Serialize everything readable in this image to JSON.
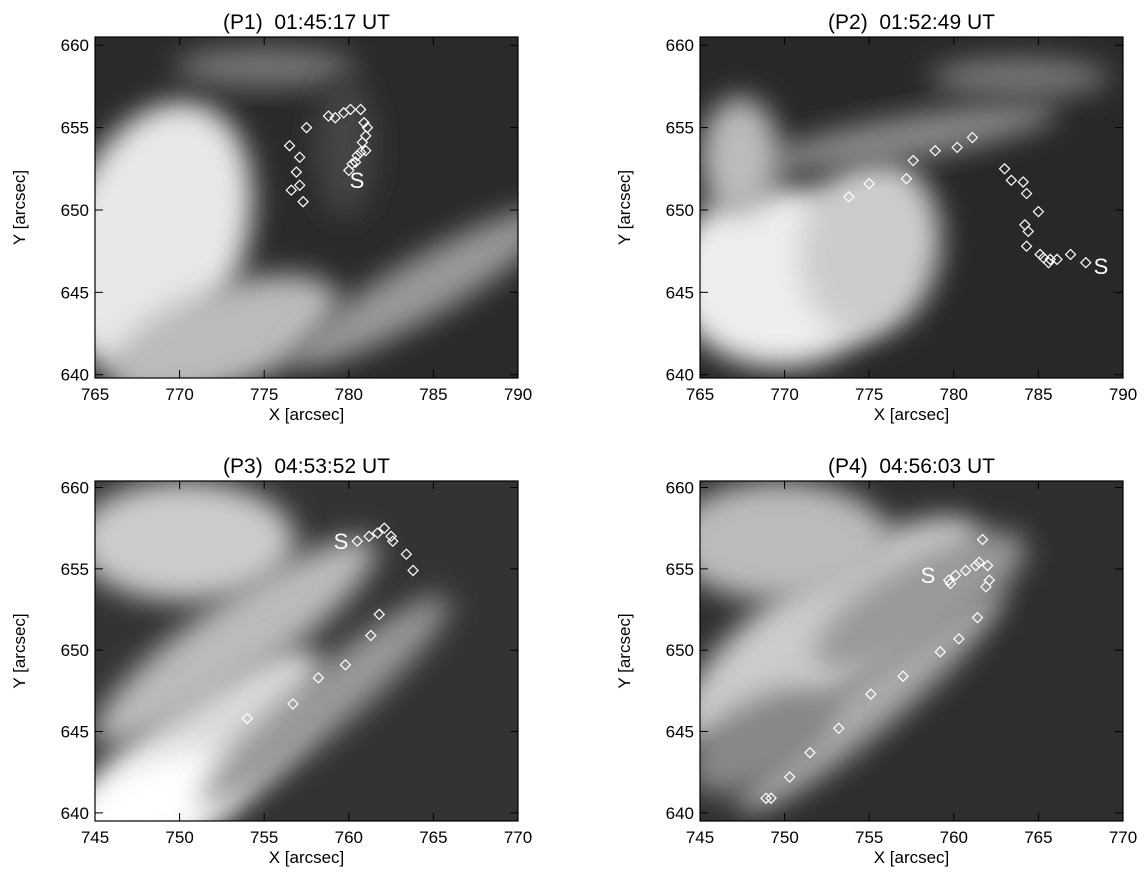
{
  "chart_data": [
    {
      "type": "scatter",
      "title": "(P1)  01:45:17 UT",
      "x_label": "X [arcsec]",
      "y_label": "Y [arcsec]",
      "xlim": [
        765,
        790
      ],
      "xticks": [
        765,
        770,
        775,
        780,
        785,
        790
      ],
      "ylim": [
        639.8,
        660.5
      ],
      "yticks": [
        640,
        645,
        650,
        655,
        660
      ],
      "annotations": [
        "S"
      ],
      "series": [
        {
          "color": "#ffffff",
          "x": [
            777.5,
            776.5,
            777.1,
            776.9,
            777.1,
            776.6,
            777.3,
            778.8,
            779.2,
            779.7,
            780.1,
            780.7,
            780.9,
            781.1,
            781.0,
            780.8,
            781.0,
            780.7,
            780.5,
            780.4,
            780.2,
            780.0
          ],
          "values": [
            655.0,
            653.9,
            653.2,
            652.3,
            651.5,
            651.2,
            650.5,
            655.7,
            655.6,
            655.9,
            656.1,
            656.1,
            655.3,
            655.0,
            654.5,
            654.1,
            653.6,
            653.5,
            653.3,
            652.9,
            652.8,
            652.4
          ]
        }
      ]
    },
    {
      "type": "scatter",
      "title": "(P2)  01:52:49 UT",
      "x_label": "X [arcsec]",
      "y_label": "Y [arcsec]",
      "xlim": [
        765,
        790
      ],
      "xticks": [
        765,
        770,
        775,
        780,
        785,
        790
      ],
      "ylim": [
        639.8,
        660.5
      ],
      "yticks": [
        640,
        645,
        650,
        655,
        660
      ],
      "annotations": [
        "S"
      ],
      "series": [
        {
          "color": "#ffffff",
          "x": [
            773.8,
            775.0,
            777.2,
            777.6,
            778.9,
            780.2,
            781.1,
            783.0,
            783.4,
            784.1,
            784.3,
            785.0,
            784.2,
            784.4,
            784.3,
            785.1,
            785.3,
            785.6,
            785.7,
            786.1,
            786.9,
            787.8
          ],
          "values": [
            650.8,
            651.6,
            651.9,
            653.0,
            653.6,
            653.8,
            654.4,
            652.5,
            651.8,
            651.7,
            651.0,
            649.9,
            649.1,
            648.7,
            647.8,
            647.3,
            647.1,
            646.8,
            647.0,
            647.0,
            647.3,
            646.8
          ]
        }
      ]
    },
    {
      "type": "scatter",
      "title": "(P3)  04:53:52 UT",
      "x_label": "X [arcsec]",
      "y_label": "Y [arcsec]",
      "xlim": [
        745,
        770
      ],
      "xticks": [
        745,
        750,
        755,
        760,
        765,
        770
      ],
      "ylim": [
        639.5,
        660.4
      ],
      "yticks": [
        640,
        645,
        650,
        655,
        660
      ],
      "annotations": [
        "S"
      ],
      "series": [
        {
          "color": "#ffffff",
          "x": [
            754.0,
            756.7,
            758.2,
            759.8,
            761.3,
            761.8,
            760.5,
            761.2,
            761.7,
            762.1,
            762.5,
            762.6,
            763.4,
            763.8
          ],
          "values": [
            645.8,
            646.7,
            648.3,
            649.1,
            650.9,
            652.2,
            656.7,
            657.0,
            657.2,
            657.5,
            657.0,
            656.7,
            655.9,
            654.9
          ]
        }
      ]
    },
    {
      "type": "scatter",
      "title": "(P4)  04:56:03 UT",
      "x_label": "X [arcsec]",
      "y_label": "Y [arcsec]",
      "xlim": [
        745,
        770
      ],
      "xticks": [
        745,
        750,
        755,
        760,
        765,
        770
      ],
      "ylim": [
        639.5,
        660.4
      ],
      "yticks": [
        640,
        645,
        650,
        655,
        660
      ],
      "annotations": [
        "S"
      ],
      "series": [
        {
          "color": "#ffffff",
          "x": [
            748.9,
            749.2,
            750.3,
            751.5,
            753.2,
            755.1,
            757.0,
            759.2,
            760.3,
            761.4,
            759.7,
            759.8,
            760.1,
            760.7,
            761.3,
            761.5,
            761.7,
            762.0,
            762.1,
            761.9
          ],
          "values": [
            640.9,
            640.9,
            642.2,
            643.7,
            645.2,
            647.3,
            648.4,
            649.9,
            650.7,
            652.0,
            654.3,
            654.1,
            654.6,
            654.9,
            655.2,
            655.4,
            656.8,
            655.2,
            654.3,
            653.9
          ]
        }
      ]
    }
  ]
}
